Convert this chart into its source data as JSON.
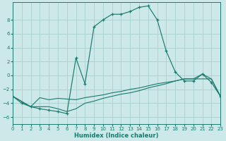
{
  "xlabel": "Humidex (Indice chaleur)",
  "background_color": "#cce8e8",
  "line_color": "#1a7a6e",
  "grid_color": "#aacfcf",
  "xlim": [
    0,
    23
  ],
  "ylim": [
    -7,
    10.5
  ],
  "yticks": [
    -6,
    -4,
    -2,
    0,
    2,
    4,
    6,
    8
  ],
  "xticks": [
    0,
    1,
    2,
    3,
    4,
    5,
    6,
    7,
    8,
    9,
    10,
    11,
    12,
    13,
    14,
    15,
    16,
    17,
    18,
    19,
    20,
    21,
    22,
    23
  ],
  "curve_x": [
    0,
    1,
    2,
    3,
    4,
    5,
    6,
    7,
    8,
    9,
    10,
    11,
    12,
    13,
    14,
    15,
    16,
    17,
    18,
    19,
    20,
    21,
    22,
    23
  ],
  "curve_y": [
    -3.0,
    -4.0,
    -4.5,
    -4.8,
    -5.0,
    -5.2,
    -5.5,
    2.5,
    -1.2,
    7.0,
    8.0,
    8.8,
    8.8,
    9.2,
    9.8,
    10.0,
    8.0,
    3.5,
    0.5,
    -0.8,
    -0.8,
    0.2,
    -1.0,
    -3.0
  ],
  "line1_x": [
    0,
    2,
    3,
    4,
    5,
    6,
    7,
    8,
    9,
    10,
    11,
    12,
    13,
    14,
    15,
    16,
    17,
    18,
    19,
    20,
    21,
    22,
    23
  ],
  "line1_y": [
    -3.0,
    -4.5,
    -3.2,
    -3.5,
    -3.3,
    -3.4,
    -3.5,
    -3.2,
    -3.0,
    -2.8,
    -2.5,
    -2.3,
    -2.0,
    -1.8,
    -1.5,
    -1.2,
    -1.0,
    -0.8,
    -0.5,
    -0.5,
    0.2,
    -0.5,
    -3.0
  ],
  "line2_x": [
    0,
    2,
    3,
    4,
    5,
    6,
    7,
    8,
    9,
    10,
    11,
    12,
    13,
    14,
    15,
    16,
    17,
    18,
    19,
    20,
    21,
    22,
    23
  ],
  "line2_y": [
    -3.0,
    -4.5,
    -4.5,
    -4.5,
    -4.8,
    -5.2,
    -4.8,
    -4.0,
    -3.7,
    -3.3,
    -3.0,
    -2.7,
    -2.5,
    -2.2,
    -1.8,
    -1.5,
    -1.2,
    -0.8,
    -0.5,
    -0.5,
    -0.5,
    -0.5,
    -3.0
  ]
}
